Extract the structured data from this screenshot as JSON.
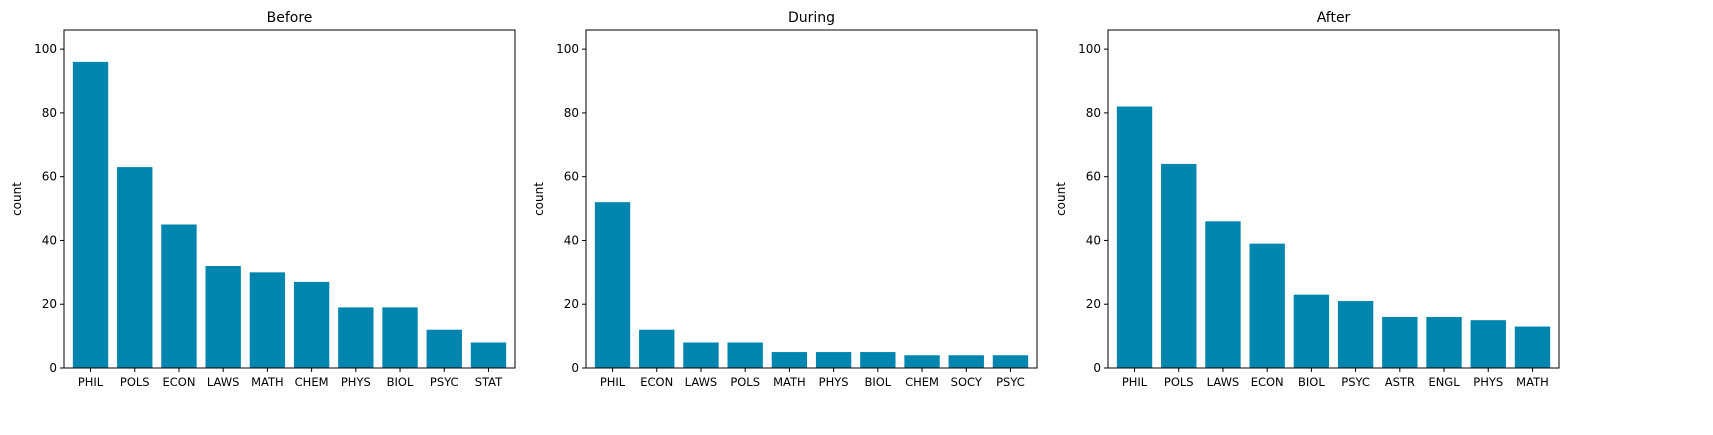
{
  "colors": {
    "bar": "#0086ae",
    "axis": "#000000",
    "background": "#ffffff"
  },
  "chart_data": [
    {
      "type": "bar",
      "title": "Before",
      "xlabel": "",
      "ylabel": "count",
      "ylim": [
        0,
        106
      ],
      "yticks": [
        0,
        20,
        40,
        60,
        80,
        100
      ],
      "grid": false,
      "categories": [
        "PHIL",
        "POLS",
        "ECON",
        "LAWS",
        "MATH",
        "CHEM",
        "PHYS",
        "BIOL",
        "PSYC",
        "STAT"
      ],
      "values": [
        96,
        63,
        45,
        32,
        30,
        27,
        19,
        19,
        12,
        8
      ]
    },
    {
      "type": "bar",
      "title": "During",
      "xlabel": "",
      "ylabel": "count",
      "ylim": [
        0,
        106
      ],
      "yticks": [
        0,
        20,
        40,
        60,
        80,
        100
      ],
      "grid": false,
      "categories": [
        "PHIL",
        "ECON",
        "LAWS",
        "POLS",
        "MATH",
        "PHYS",
        "BIOL",
        "CHEM",
        "SOCY",
        "PSYC"
      ],
      "values": [
        52,
        12,
        8,
        8,
        5,
        5,
        5,
        4,
        4,
        4
      ]
    },
    {
      "type": "bar",
      "title": "After",
      "xlabel": "",
      "ylabel": "count",
      "ylim": [
        0,
        106
      ],
      "yticks": [
        0,
        20,
        40,
        60,
        80,
        100
      ],
      "grid": false,
      "categories": [
        "PHIL",
        "POLS",
        "LAWS",
        "ECON",
        "BIOL",
        "PSYC",
        "ASTR",
        "ENGL",
        "PHYS",
        "MATH"
      ],
      "values": [
        82,
        64,
        46,
        39,
        23,
        21,
        16,
        16,
        15,
        13
      ]
    }
  ]
}
